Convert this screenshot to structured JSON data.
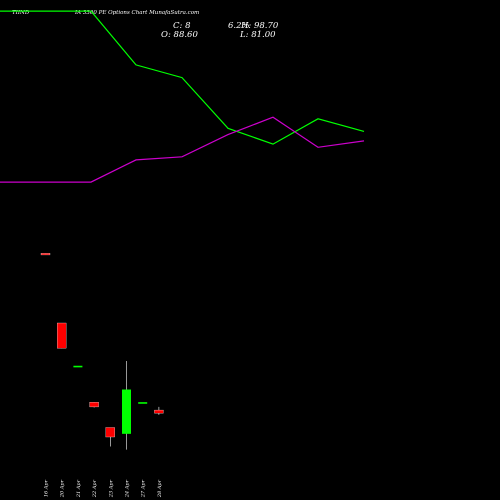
{
  "header": {
    "symbol": "TIINDIA 3300 PE Options Chart MunafaSutra.com",
    "symbol_left": "TIIND",
    "symbol_right": "IA 3300  PE Options  Chart MunafaSutra.com",
    "close": "C: 8",
    "change": "6.2%",
    "high": "H: 98.70",
    "open": "O: 88.60",
    "low": "L: 81.00"
  },
  "colors": {
    "background": "#000000",
    "bull": "#00ff00",
    "bear": "#ff0000",
    "line_green": "#00ff00",
    "line_magenta": "#cc00cc",
    "wick": "#ffffff",
    "text": "#ffffff"
  },
  "chart_data": {
    "type": "candlestick",
    "categories": [
      "16 Apr",
      "20 Apr",
      "21 Apr",
      "22 Apr",
      "23 Apr",
      "24 Apr",
      "27 Apr",
      "28 Apr"
    ],
    "candles": [
      {
        "date": "16 Apr",
        "open": 60.0,
        "high": 60.0,
        "close": 59.5,
        "low": 59.5,
        "color": "bear"
      },
      {
        "date": "20 Apr",
        "open": 38.0,
        "high": 38.0,
        "close": 30.0,
        "low": 30.0,
        "color": "bear"
      },
      {
        "date": "21 Apr",
        "open": 24.5,
        "high": 24.5,
        "close": 24.5,
        "low": 24.5,
        "color": "bull"
      },
      {
        "date": "22 Apr",
        "open": 13.0,
        "high": 13.0,
        "close": 11.5,
        "low": 11.3,
        "color": "bear"
      },
      {
        "date": "23 Apr",
        "open": 5.0,
        "high": 5.0,
        "close": 2.0,
        "low": -1.0,
        "color": "bear"
      },
      {
        "date": "24 Apr",
        "open": 3.0,
        "high": 26.0,
        "close": 17.0,
        "low": -2.0,
        "color": "bull"
      },
      {
        "date": "27 Apr",
        "open": 13.0,
        "high": 13.0,
        "close": 13.0,
        "low": 13.0,
        "color": "bull"
      },
      {
        "date": "28 Apr",
        "open": 10.5,
        "high": 11.5,
        "close": 9.5,
        "low": 9.0,
        "color": "bear"
      }
    ],
    "ylim": [
      -10,
      140
    ],
    "series": [
      {
        "color": "#00ff00",
        "values": [
          136.5,
          136.5,
          119.5,
          115.5,
          99.5,
          94.5,
          102.5,
          98.5
        ]
      },
      {
        "color": "#cc00cc",
        "values": [
          82.5,
          82.5,
          89.5,
          90.5,
          97.5,
          103.0,
          93.5,
          95.5
        ]
      }
    ],
    "xlabel": "",
    "ylabel": "",
    "grid": false
  }
}
